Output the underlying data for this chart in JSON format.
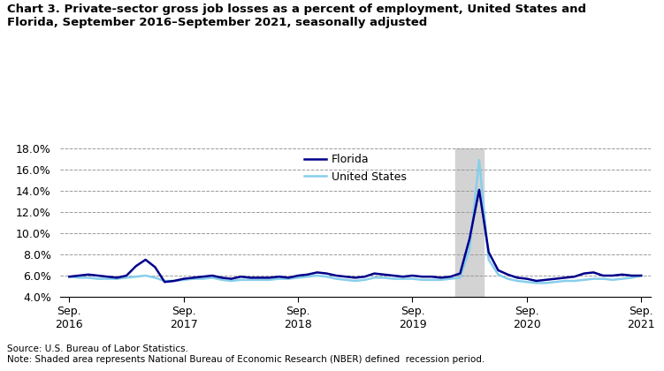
{
  "title": "Chart 3. Private-sector gross job losses as a percent of employment, United States and\nFlorida, September 2016–September 2021, seasonally adjusted",
  "source": "Source: U.S. Bureau of Labor Statistics.",
  "note": "Note: Shaded area represents National Bureau of Economic Research (NBER) defined  recession period.",
  "florida": [
    5.9,
    6.0,
    6.1,
    6.0,
    5.9,
    5.8,
    6.0,
    6.9,
    7.5,
    6.8,
    5.4,
    5.5,
    5.7,
    5.8,
    5.9,
    6.0,
    5.8,
    5.7,
    5.9,
    5.8,
    5.8,
    5.8,
    5.9,
    5.8,
    6.0,
    6.1,
    6.3,
    6.2,
    6.0,
    5.9,
    5.8,
    5.9,
    6.2,
    6.1,
    6.0,
    5.9,
    6.0,
    5.9,
    5.9,
    5.8,
    5.9,
    6.2,
    9.5,
    14.1,
    8.2,
    6.5,
    6.1,
    5.8,
    5.7,
    5.5,
    5.6,
    5.7,
    5.8,
    5.9,
    6.2,
    6.3,
    6.0,
    6.0,
    6.1,
    6.0,
    6.0
  ],
  "us": [
    5.9,
    5.8,
    5.8,
    5.7,
    5.7,
    5.7,
    5.8,
    5.9,
    6.0,
    5.8,
    5.5,
    5.5,
    5.6,
    5.7,
    5.7,
    5.8,
    5.6,
    5.5,
    5.6,
    5.6,
    5.6,
    5.6,
    5.7,
    5.7,
    5.8,
    5.9,
    6.0,
    5.9,
    5.7,
    5.6,
    5.5,
    5.6,
    5.8,
    5.8,
    5.7,
    5.7,
    5.7,
    5.6,
    5.6,
    5.6,
    5.7,
    5.8,
    8.5,
    16.9,
    7.5,
    6.1,
    5.7,
    5.5,
    5.4,
    5.3,
    5.3,
    5.4,
    5.5,
    5.5,
    5.6,
    5.7,
    5.7,
    5.6,
    5.7,
    5.8,
    6.0
  ],
  "florida_color": "#00008B",
  "us_color": "#87CEEB",
  "recession_start_idx": 41,
  "recession_end_idx": 43,
  "recession_color": "#D3D3D3",
  "ylim": [
    4.0,
    18.0
  ],
  "yticks": [
    4.0,
    6.0,
    8.0,
    10.0,
    12.0,
    14.0,
    16.0,
    18.0
  ],
  "xtick_positions": [
    0,
    12,
    24,
    36,
    48,
    60
  ],
  "xtick_labels": [
    "Sep.\n2016",
    "Sep.\n2017",
    "Sep.\n2018",
    "Sep.\n2019",
    "Sep.\n2020",
    "Sep.\n2021"
  ],
  "legend_florida": "Florida",
  "legend_us": "United States",
  "line_width": 1.8
}
